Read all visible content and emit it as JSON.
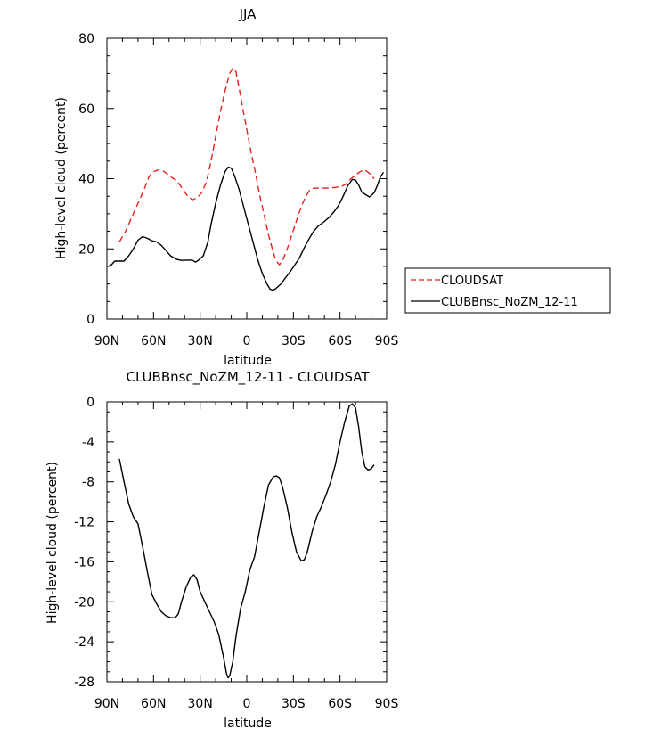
{
  "chart_data": [
    {
      "type": "line",
      "title": "JJA",
      "xlabel": "latitude",
      "ylabel": "High-level cloud (percent)",
      "xlim": [
        90,
        -90
      ],
      "ylim": [
        0,
        80
      ],
      "x_ticks": [
        90,
        60,
        30,
        0,
        -30,
        -60,
        -90
      ],
      "x_tick_labels": [
        "90N",
        "60N",
        "30N",
        "0",
        "30S",
        "60S",
        "90S"
      ],
      "y_ticks": [
        0,
        20,
        40,
        60,
        80
      ],
      "y_tick_labels": [
        "0",
        "20",
        "40",
        "60",
        "80"
      ],
      "legend_position": "right, outside plot",
      "series": [
        {
          "name": "CLOUDSAT",
          "color": "#e8221e",
          "dash": "dashed",
          "points": [
            [
              82,
              22
            ],
            [
              78,
              25
            ],
            [
              74,
              29
            ],
            [
              70,
              33
            ],
            [
              66,
              37
            ],
            [
              63,
              40.5
            ],
            [
              60,
              42
            ],
            [
              57,
              42.5
            ],
            [
              53,
              42
            ],
            [
              49,
              40.5
            ],
            [
              45,
              39.5
            ],
            [
              42,
              37.5
            ],
            [
              38,
              35
            ],
            [
              35,
              34
            ],
            [
              32,
              34.5
            ],
            [
              29,
              36
            ],
            [
              26,
              39
            ],
            [
              23,
              45
            ],
            [
              20,
              52
            ],
            [
              17,
              59
            ],
            [
              14,
              65
            ],
            [
              11,
              70
            ],
            [
              9,
              71.5
            ],
            [
              7,
              70.5
            ],
            [
              5,
              66
            ],
            [
              3,
              61
            ],
            [
              0,
              54
            ],
            [
              -3,
              47
            ],
            [
              -5,
              43
            ],
            [
              -8,
              36
            ],
            [
              -11,
              30
            ],
            [
              -14,
              24
            ],
            [
              -17,
              19
            ],
            [
              -19,
              16.5
            ],
            [
              -21,
              15.5
            ],
            [
              -23,
              16.5
            ],
            [
              -26,
              20
            ],
            [
              -29,
              24
            ],
            [
              -32,
              28
            ],
            [
              -35,
              32
            ],
            [
              -38,
              35
            ],
            [
              -41,
              37
            ],
            [
              -44,
              37.3
            ],
            [
              -48,
              37.3
            ],
            [
              -52,
              37.3
            ],
            [
              -57,
              37.5
            ],
            [
              -61,
              37.8
            ],
            [
              -64,
              38.5
            ],
            [
              -67,
              40
            ],
            [
              -70,
              41
            ],
            [
              -73,
              42
            ],
            [
              -76,
              42.5
            ],
            [
              -79,
              41.5
            ],
            [
              -82,
              40
            ]
          ]
        },
        {
          "name": "CLUBBnsc_NoZM_12-11",
          "color": "#000000",
          "dash": "solid",
          "points": [
            [
              89,
              15
            ],
            [
              87,
              15.5
            ],
            [
              85,
              16.5
            ],
            [
              82,
              16.5
            ],
            [
              79,
              16.5
            ],
            [
              76,
              18
            ],
            [
              73,
              20
            ],
            [
              70,
              22.5
            ],
            [
              67,
              23.5
            ],
            [
              64,
              23
            ],
            [
              61,
              22.3
            ],
            [
              58,
              22
            ],
            [
              55,
              21
            ],
            [
              52,
              19.5
            ],
            [
              49,
              18
            ],
            [
              45,
              17
            ],
            [
              42,
              16.7
            ],
            [
              38,
              16.8
            ],
            [
              35,
              16.8
            ],
            [
              33,
              16.2
            ],
            [
              31,
              16.8
            ],
            [
              28,
              18
            ],
            [
              25,
              22
            ],
            [
              23,
              27
            ],
            [
              20,
              33
            ],
            [
              17,
              38
            ],
            [
              14,
              42
            ],
            [
              12,
              43.3
            ],
            [
              10,
              43
            ],
            [
              8,
              41
            ],
            [
              5,
              37
            ],
            [
              2,
              32
            ],
            [
              -1,
              27
            ],
            [
              -4,
              22
            ],
            [
              -7,
              17
            ],
            [
              -10,
              13
            ],
            [
              -13,
              10
            ],
            [
              -15,
              8.5
            ],
            [
              -17,
              8.2
            ],
            [
              -19,
              8.8
            ],
            [
              -22,
              10
            ],
            [
              -25,
              11.8
            ],
            [
              -28,
              13.5
            ],
            [
              -31,
              15.5
            ],
            [
              -34,
              17.5
            ],
            [
              -37,
              20.3
            ],
            [
              -40,
              22.8
            ],
            [
              -43,
              25
            ],
            [
              -46,
              26.5
            ],
            [
              -50,
              27.8
            ],
            [
              -53,
              29
            ],
            [
              -56,
              30.5
            ],
            [
              -59,
              32.3
            ],
            [
              -62,
              35
            ],
            [
              -65,
              38
            ],
            [
              -68,
              39.8
            ],
            [
              -70,
              39.6
            ],
            [
              -72,
              38.2
            ],
            [
              -74,
              36.2
            ],
            [
              -77,
              35.3
            ],
            [
              -79,
              34.8
            ],
            [
              -82,
              36
            ],
            [
              -84,
              38
            ],
            [
              -86,
              40.5
            ],
            [
              -88,
              41.8
            ]
          ]
        }
      ]
    },
    {
      "type": "line",
      "title": "CLUBBnsc_NoZM_12-11 - CLOUDSAT",
      "xlabel": "latitude",
      "ylabel": "High-level cloud (percent)",
      "xlim": [
        90,
        -90
      ],
      "ylim": [
        -28,
        0
      ],
      "x_ticks": [
        90,
        60,
        30,
        0,
        -30,
        -60,
        -90
      ],
      "x_tick_labels": [
        "90N",
        "60N",
        "30N",
        "0",
        "30S",
        "60S",
        "90S"
      ],
      "y_ticks": [
        0,
        -4,
        -8,
        -12,
        -16,
        -20,
        -24,
        -28
      ],
      "y_tick_labels": [
        "0",
        "-4",
        "-8",
        "-12",
        "-16",
        "-20",
        "-24",
        "-28"
      ],
      "series": [
        {
          "color": "#000000",
          "dash": "solid",
          "points": [
            [
              82,
              -5.7
            ],
            [
              79,
              -8
            ],
            [
              76,
              -10.2
            ],
            [
              73,
              -11.5
            ],
            [
              70,
              -12.2
            ],
            [
              67,
              -14.5
            ],
            [
              64,
              -17
            ],
            [
              61,
              -19.3
            ],
            [
              58,
              -20.2
            ],
            [
              55,
              -21
            ],
            [
              52,
              -21.4
            ],
            [
              49,
              -21.6
            ],
            [
              46,
              -21.6
            ],
            [
              44,
              -21.2
            ],
            [
              42,
              -20
            ],
            [
              39,
              -18.5
            ],
            [
              36,
              -17.5
            ],
            [
              34,
              -17.3
            ],
            [
              32,
              -17.8
            ],
            [
              30,
              -19
            ],
            [
              27,
              -20
            ],
            [
              24,
              -21
            ],
            [
              21,
              -22
            ],
            [
              18,
              -23.3
            ],
            [
              15,
              -25.5
            ],
            [
              13,
              -27.2
            ],
            [
              12,
              -27.6
            ],
            [
              11,
              -27.4
            ],
            [
              9,
              -26
            ],
            [
              7,
              -23.5
            ],
            [
              4,
              -20.7
            ],
            [
              1,
              -19
            ],
            [
              -2,
              -16.8
            ],
            [
              -5,
              -15.5
            ],
            [
              -8,
              -13
            ],
            [
              -11,
              -10.5
            ],
            [
              -14,
              -8.3
            ],
            [
              -17,
              -7.5
            ],
            [
              -19,
              -7.4
            ],
            [
              -21,
              -7.6
            ],
            [
              -23,
              -8.5
            ],
            [
              -26,
              -10.5
            ],
            [
              -29,
              -13
            ],
            [
              -32,
              -15
            ],
            [
              -35,
              -15.9
            ],
            [
              -37,
              -15.8
            ],
            [
              -39,
              -15
            ],
            [
              -42,
              -13
            ],
            [
              -45,
              -11.5
            ],
            [
              -48,
              -10.5
            ],
            [
              -51,
              -9.3
            ],
            [
              -54,
              -8
            ],
            [
              -57,
              -6.3
            ],
            [
              -60,
              -4
            ],
            [
              -63,
              -2
            ],
            [
              -66,
              -0.4
            ],
            [
              -68,
              -0.2
            ],
            [
              -70,
              -0.6
            ],
            [
              -72,
              -2.5
            ],
            [
              -74,
              -5
            ],
            [
              -76,
              -6.5
            ],
            [
              -78,
              -6.8
            ],
            [
              -80,
              -6.7
            ],
            [
              -82,
              -6.3
            ]
          ]
        }
      ]
    }
  ]
}
